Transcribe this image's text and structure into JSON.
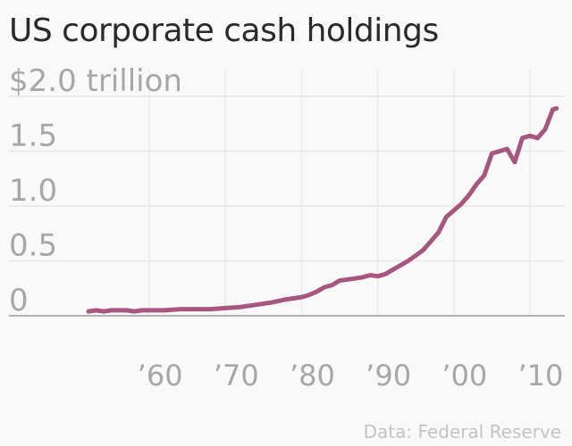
{
  "chart_data": {
    "type": "line",
    "title": "US corporate cash holdings",
    "source": "Data: Federal Reserve",
    "xlabel": "",
    "ylabel": "",
    "xlim": [
      1952,
      2014
    ],
    "ylim": [
      0,
      2.0
    ],
    "grid": true,
    "yticks": [
      {
        "value": 2.0,
        "label": "$2.0 trillion"
      },
      {
        "value": 1.5,
        "label": "1.5"
      },
      {
        "value": 1.0,
        "label": "1.0"
      },
      {
        "value": 0.5,
        "label": "0.5"
      },
      {
        "value": 0,
        "label": "0"
      }
    ],
    "xticks": [
      {
        "value": 1960,
        "label": "’60"
      },
      {
        "value": 1970,
        "label": "’70"
      },
      {
        "value": 1980,
        "label": "’80"
      },
      {
        "value": 1990,
        "label": "’90"
      },
      {
        "value": 2000,
        "label": "’00"
      },
      {
        "value": 2010,
        "label": "’10"
      }
    ],
    "series": [
      {
        "color": "#a6567f",
        "x": [
          1952,
          1953,
          1954,
          1955,
          1956,
          1957,
          1958,
          1959,
          1960,
          1962,
          1964,
          1966,
          1968,
          1970,
          1972,
          1974,
          1976,
          1978,
          1980,
          1981,
          1982,
          1983,
          1984,
          1985,
          1986,
          1987,
          1988,
          1989,
          1990,
          1991,
          1992,
          1993,
          1994,
          1995,
          1996,
          1997,
          1998,
          1999,
          2000,
          2001,
          2002,
          2003,
          2004,
          2005,
          2006,
          2007,
          2008,
          2009,
          2010,
          2011,
          2012,
          2013,
          2013.5
        ],
        "y": [
          0.04,
          0.05,
          0.04,
          0.05,
          0.05,
          0.05,
          0.04,
          0.05,
          0.05,
          0.05,
          0.06,
          0.06,
          0.06,
          0.07,
          0.08,
          0.1,
          0.12,
          0.15,
          0.17,
          0.19,
          0.22,
          0.26,
          0.28,
          0.32,
          0.33,
          0.34,
          0.35,
          0.37,
          0.36,
          0.38,
          0.42,
          0.46,
          0.5,
          0.55,
          0.6,
          0.68,
          0.76,
          0.9,
          0.96,
          1.02,
          1.1,
          1.2,
          1.28,
          1.48,
          1.5,
          1.52,
          1.4,
          1.62,
          1.64,
          1.62,
          1.7,
          1.88,
          1.89
        ]
      }
    ]
  }
}
